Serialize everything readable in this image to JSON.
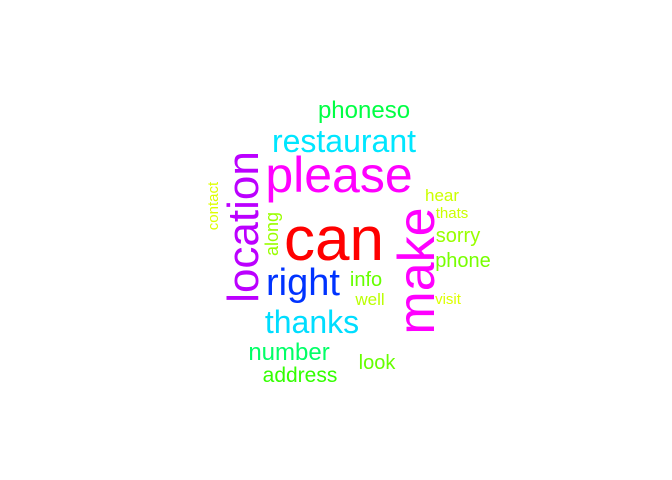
{
  "words": [
    {
      "key": "can",
      "text": "can",
      "color": "#ff0000"
    },
    {
      "key": "please",
      "text": "please",
      "color": "#ff00ff"
    },
    {
      "key": "make",
      "text": "make",
      "color": "#ff00ff"
    },
    {
      "key": "location",
      "text": "location",
      "color": "#bb00ff"
    },
    {
      "key": "right",
      "text": "right",
      "color": "#0033ff"
    },
    {
      "key": "restaurant",
      "text": "restaurant",
      "color": "#00e6ff"
    },
    {
      "key": "thanks",
      "text": "thanks",
      "color": "#00ddff"
    },
    {
      "key": "phoneso",
      "text": "phoneso",
      "color": "#00ff44"
    },
    {
      "key": "number",
      "text": "number",
      "color": "#00ff66"
    },
    {
      "key": "address",
      "text": "address",
      "color": "#33ff00"
    },
    {
      "key": "look",
      "text": "look",
      "color": "#66ff00"
    },
    {
      "key": "info",
      "text": "info",
      "color": "#66ff00"
    },
    {
      "key": "well",
      "text": "well",
      "color": "#bbff00"
    },
    {
      "key": "sorry",
      "text": "sorry",
      "color": "#99ff00"
    },
    {
      "key": "phone",
      "text": "phone",
      "color": "#77ff00"
    },
    {
      "key": "hear",
      "text": "hear",
      "color": "#ccff00"
    },
    {
      "key": "thats",
      "text": "thats",
      "color": "#ccff00"
    },
    {
      "key": "visit",
      "text": "visit",
      "color": "#ddff00"
    },
    {
      "key": "along",
      "text": "along",
      "color": "#99ff00"
    },
    {
      "key": "contact",
      "text": "contact",
      "color": "#ddff00"
    }
  ]
}
